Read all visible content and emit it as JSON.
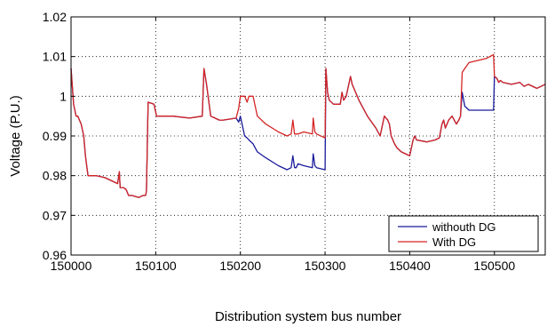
{
  "chart_data": {
    "type": "line",
    "xlabel": "Distribution system bus number",
    "ylabel": "Voltage (P.U.)",
    "xlim": [
      150000,
      150560
    ],
    "ylim": [
      0.96,
      1.02
    ],
    "xticks": [
      150000,
      150100,
      150200,
      150300,
      150400,
      150500
    ],
    "xtick_labels": [
      "150000",
      "150100",
      "150200",
      "150300",
      "150400",
      "150500"
    ],
    "yticks": [
      0.96,
      0.97,
      0.98,
      0.99,
      1,
      1.01,
      1.02
    ],
    "ytick_labels": [
      "0.96",
      "0.97",
      "0.98",
      "0.99",
      "1",
      "1.01",
      "1.02"
    ],
    "grid": true,
    "legend_position": "bottom-right",
    "series": [
      {
        "name": "withouth DG",
        "color": "#1a1a9c",
        "x": [
          150000,
          150003,
          150006,
          150008,
          150012,
          150015,
          150017,
          150020,
          150030,
          150040,
          150050,
          150055,
          150057,
          150058,
          150062,
          150065,
          150068,
          150072,
          150080,
          150085,
          150088,
          150089,
          150091,
          150098,
          150101,
          150120,
          150140,
          150155,
          150157,
          150160,
          150165,
          150170,
          150175,
          150180,
          150195,
          150198,
          150200,
          150205,
          150208,
          150210,
          150215,
          150220,
          150230,
          150245,
          150255,
          150260,
          150262,
          150264,
          150266,
          150268,
          150275,
          150285,
          150286,
          150288,
          150290,
          150300,
          150301,
          150303,
          150305,
          150310,
          150318,
          150320,
          150322,
          150325,
          150330,
          150332,
          150340,
          150350,
          150360,
          150365,
          150370,
          150374,
          150376,
          150378,
          150382,
          150385,
          150390,
          150395,
          150400,
          150404,
          150406,
          150408,
          150420,
          150430,
          150435,
          150438,
          150440,
          150442,
          150446,
          150450,
          150455,
          150458,
          150460,
          150462,
          150465,
          150470,
          150480,
          150490,
          150499,
          150500,
          150503,
          150505,
          150507,
          150510,
          150520,
          150530,
          150535,
          150540,
          150550,
          150560
        ],
        "values": [
          1.007,
          0.998,
          0.995,
          0.995,
          0.993,
          0.99,
          0.985,
          0.98,
          0.98,
          0.9795,
          0.9785,
          0.978,
          0.981,
          0.977,
          0.977,
          0.9765,
          0.975,
          0.975,
          0.9745,
          0.975,
          0.975,
          0.976,
          0.9985,
          0.998,
          0.995,
          0.995,
          0.9945,
          0.995,
          1.007,
          1.003,
          0.995,
          0.9945,
          0.994,
          0.994,
          0.9945,
          0.9935,
          0.995,
          0.99,
          0.9895,
          0.989,
          0.988,
          0.986,
          0.9845,
          0.9825,
          0.9815,
          0.982,
          0.985,
          0.982,
          0.982,
          0.983,
          0.9825,
          0.982,
          0.9855,
          0.9825,
          0.982,
          0.9815,
          1.007,
          1.001,
          0.999,
          0.998,
          0.998,
          1.001,
          0.999,
          1.0,
          1.005,
          1.003,
          0.999,
          0.995,
          0.992,
          0.99,
          0.995,
          0.994,
          0.993,
          0.99,
          0.988,
          0.987,
          0.986,
          0.9855,
          0.985,
          0.989,
          0.99,
          0.989,
          0.9885,
          0.989,
          0.9895,
          0.993,
          0.994,
          0.992,
          0.994,
          0.995,
          0.993,
          0.994,
          0.995,
          1.001,
          0.9975,
          0.9965,
          0.9965,
          0.9965,
          0.9965,
          1.005,
          1.0045,
          1.0035,
          1.004,
          1.0035,
          1.003,
          1.0035,
          1.0025,
          1.003,
          1.002,
          1.003
        ]
      },
      {
        "name": "With DG",
        "color": "#d42424",
        "x": [
          150000,
          150003,
          150006,
          150008,
          150012,
          150015,
          150017,
          150020,
          150030,
          150040,
          150050,
          150055,
          150057,
          150058,
          150062,
          150065,
          150068,
          150072,
          150080,
          150085,
          150088,
          150089,
          150091,
          150098,
          150101,
          150120,
          150140,
          150155,
          150157,
          150160,
          150165,
          150170,
          150175,
          150180,
          150195,
          150198,
          150200,
          150205,
          150208,
          150210,
          150215,
          150220,
          150230,
          150245,
          150255,
          150260,
          150262,
          150264,
          150266,
          150268,
          150275,
          150285,
          150286,
          150288,
          150290,
          150300,
          150301,
          150303,
          150305,
          150310,
          150318,
          150320,
          150322,
          150325,
          150330,
          150332,
          150340,
          150350,
          150360,
          150365,
          150370,
          150374,
          150376,
          150378,
          150382,
          150385,
          150390,
          150395,
          150400,
          150404,
          150406,
          150408,
          150420,
          150430,
          150435,
          150438,
          150440,
          150442,
          150446,
          150450,
          150455,
          150458,
          150460,
          150462,
          150465,
          150470,
          150480,
          150490,
          150499,
          150500,
          150503,
          150505,
          150507,
          150510,
          150520,
          150530,
          150535,
          150540,
          150550,
          150560
        ],
        "values": [
          1.007,
          0.998,
          0.995,
          0.995,
          0.993,
          0.99,
          0.985,
          0.98,
          0.98,
          0.9795,
          0.9785,
          0.978,
          0.981,
          0.977,
          0.977,
          0.9765,
          0.975,
          0.975,
          0.9745,
          0.975,
          0.975,
          0.976,
          0.9985,
          0.998,
          0.995,
          0.995,
          0.9945,
          0.995,
          1.007,
          1.003,
          0.995,
          0.9945,
          0.994,
          0.994,
          0.9945,
          0.997,
          1.0,
          1.0,
          0.9985,
          1.0,
          1.0,
          0.995,
          0.993,
          0.991,
          0.99,
          0.9905,
          0.994,
          0.9905,
          0.9905,
          0.9905,
          0.991,
          0.9905,
          0.9945,
          0.991,
          0.9905,
          0.9895,
          1.007,
          1.001,
          0.999,
          0.998,
          0.998,
          1.001,
          0.999,
          1.0,
          1.005,
          1.003,
          0.999,
          0.995,
          0.992,
          0.99,
          0.995,
          0.994,
          0.993,
          0.99,
          0.988,
          0.987,
          0.986,
          0.9855,
          0.985,
          0.989,
          0.99,
          0.989,
          0.9885,
          0.989,
          0.9895,
          0.993,
          0.994,
          0.992,
          0.994,
          0.995,
          0.993,
          0.994,
          0.995,
          1.006,
          1.007,
          1.0085,
          1.009,
          1.0095,
          1.0105,
          1.005,
          1.0045,
          1.0035,
          1.004,
          1.0035,
          1.003,
          1.0035,
          1.0025,
          1.003,
          1.002,
          1.003
        ]
      }
    ]
  }
}
